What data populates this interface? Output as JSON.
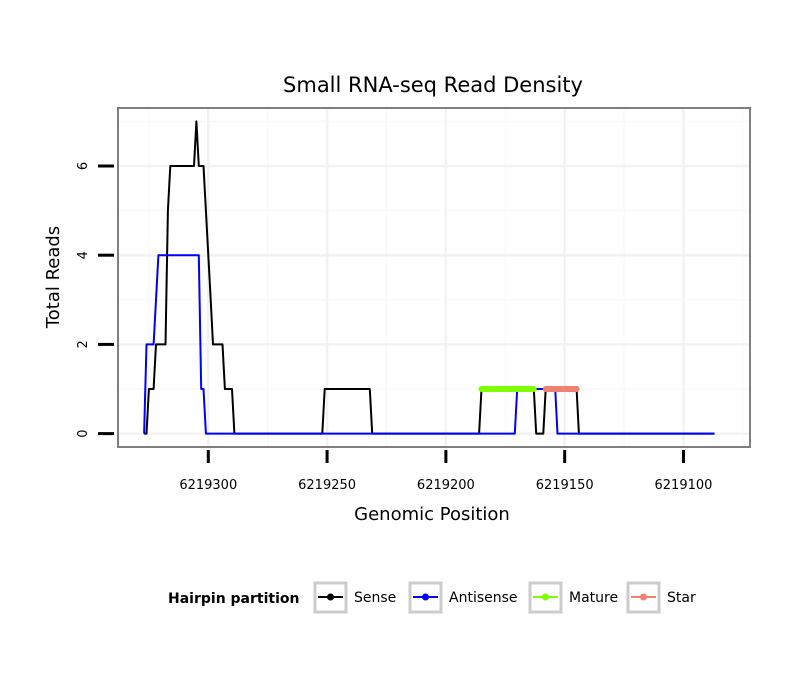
{
  "chart_data": {
    "type": "line",
    "title": "Small RNA-seq Read Density",
    "xlabel": "Genomic Position",
    "ylabel": "Total Reads",
    "x_reversed": true,
    "xlim": [
      6219072,
      6219338
    ],
    "ylim": [
      -0.3,
      7.3
    ],
    "x_ticks": [
      6219300,
      6219250,
      6219200,
      6219150,
      6219100
    ],
    "x_tick_labels": [
      "6219300",
      "6219250",
      "6219200",
      "6219150",
      "6219100"
    ],
    "y_ticks": [
      0,
      2,
      4,
      6
    ],
    "y_tick_labels": [
      "0",
      "2",
      "4",
      "6"
    ],
    "grid": true,
    "legend": {
      "title": "Hairpin partition",
      "position": "bottom",
      "entries": [
        "Sense",
        "Antisense",
        "Mature",
        "Star"
      ]
    },
    "series": [
      {
        "name": "Sense",
        "color": "#000000",
        "points": [
          [
            6219327,
            0
          ],
          [
            6219326,
            0
          ],
          [
            6219325,
            1
          ],
          [
            6219323,
            1
          ],
          [
            6219322,
            2
          ],
          [
            6219318,
            2
          ],
          [
            6219317,
            5
          ],
          [
            6219316,
            6
          ],
          [
            6219306,
            6
          ],
          [
            6219305,
            7
          ],
          [
            6219304,
            6
          ],
          [
            6219302,
            6
          ],
          [
            6219301,
            5
          ],
          [
            6219300,
            4
          ],
          [
            6219299,
            3
          ],
          [
            6219298,
            2
          ],
          [
            6219294,
            2
          ],
          [
            6219293,
            1
          ],
          [
            6219290,
            1
          ],
          [
            6219289,
            0
          ],
          [
            6219252,
            0
          ],
          [
            6219251,
            1
          ],
          [
            6219232,
            1
          ],
          [
            6219231,
            0
          ],
          [
            6219186,
            0
          ],
          [
            6219185,
            1
          ],
          [
            6219163,
            1
          ],
          [
            6219162,
            0
          ],
          [
            6219159,
            0
          ],
          [
            6219158,
            1
          ],
          [
            6219145,
            1
          ],
          [
            6219144,
            0
          ],
          [
            6219087,
            0
          ]
        ]
      },
      {
        "name": "Antisense",
        "color": "#0000ff",
        "points": [
          [
            6219327,
            0
          ],
          [
            6219326,
            2
          ],
          [
            6219323,
            2
          ],
          [
            6219322,
            3
          ],
          [
            6219321,
            4
          ],
          [
            6219304,
            4
          ],
          [
            6219303,
            1
          ],
          [
            6219302,
            1
          ],
          [
            6219301,
            0
          ],
          [
            6219171,
            0
          ],
          [
            6219170,
            1
          ],
          [
            6219164,
            1
          ],
          [
            6219159,
            1
          ],
          [
            6219158,
            1
          ],
          [
            6219154,
            1
          ],
          [
            6219153,
            0
          ],
          [
            6219087,
            0
          ]
        ]
      },
      {
        "name": "Mature",
        "color": "#7fff00",
        "points": [
          [
            6219185,
            1
          ],
          [
            6219163,
            1
          ]
        ]
      },
      {
        "name": "Star",
        "color": "#f08070",
        "points": [
          [
            6219158,
            1
          ],
          [
            6219145,
            1
          ]
        ]
      }
    ]
  }
}
